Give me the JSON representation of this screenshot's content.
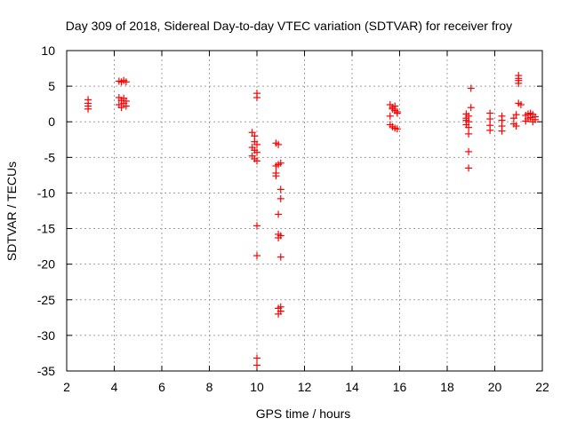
{
  "chart_data": {
    "type": "scatter",
    "title": "Day 309 of 2018, Sidereal Day-to-day VTEC variation (SDTVAR) for receiver froy",
    "xlabel": "GPS time / hours",
    "ylabel": "SDTVAR / TECUs",
    "xlim": [
      2,
      22
    ],
    "ylim": [
      -35,
      10
    ],
    "xticks": [
      2,
      4,
      6,
      8,
      10,
      12,
      14,
      16,
      18,
      20,
      22
    ],
    "yticks": [
      10,
      5,
      0,
      -5,
      -10,
      -15,
      -20,
      -25,
      -30,
      -35
    ],
    "grid": true,
    "marker": "+",
    "color": "#ff0000",
    "series": [
      {
        "name": "SDTVAR",
        "points": [
          [
            2.9,
            3.1
          ],
          [
            2.9,
            2.6
          ],
          [
            2.9,
            2.2
          ],
          [
            2.9,
            1.8
          ],
          [
            4.2,
            5.7
          ],
          [
            4.3,
            5.6
          ],
          [
            4.4,
            5.8
          ],
          [
            4.5,
            5.6
          ],
          [
            4.2,
            3.4
          ],
          [
            4.3,
            3.0
          ],
          [
            4.4,
            2.6
          ],
          [
            4.5,
            2.2
          ],
          [
            4.3,
            2.0
          ],
          [
            4.4,
            3.3
          ],
          [
            4.5,
            2.9
          ],
          [
            4.2,
            2.4
          ],
          [
            9.8,
            -1.5
          ],
          [
            9.9,
            -2.0
          ],
          [
            9.9,
            -2.8
          ],
          [
            10.0,
            -3.2
          ],
          [
            9.8,
            -3.6
          ],
          [
            9.9,
            -4.0
          ],
          [
            10.0,
            -4.3
          ],
          [
            9.8,
            -4.8
          ],
          [
            9.9,
            -5.2
          ],
          [
            10.0,
            -5.5
          ],
          [
            10.0,
            4.0
          ],
          [
            10.0,
            3.4
          ],
          [
            10.0,
            -14.6
          ],
          [
            10.0,
            -18.8
          ],
          [
            10.0,
            -33.2
          ],
          [
            10.0,
            -34.2
          ],
          [
            10.8,
            -3.0
          ],
          [
            10.9,
            -3.2
          ],
          [
            10.8,
            -6.2
          ],
          [
            10.9,
            -6.0
          ],
          [
            11.0,
            -5.8
          ],
          [
            10.8,
            -7.2
          ],
          [
            10.8,
            -7.6
          ],
          [
            11.0,
            -9.5
          ],
          [
            11.0,
            -10.8
          ],
          [
            10.9,
            -13.0
          ],
          [
            10.9,
            -15.8
          ],
          [
            10.9,
            -16.3
          ],
          [
            11.0,
            -16.0
          ],
          [
            11.0,
            -19.0
          ],
          [
            10.9,
            -26.2
          ],
          [
            11.0,
            -26.6
          ],
          [
            10.9,
            -27.0
          ],
          [
            11.0,
            -26.0
          ],
          [
            15.6,
            2.4
          ],
          [
            15.7,
            2.0
          ],
          [
            15.8,
            1.6
          ],
          [
            15.9,
            1.2
          ],
          [
            15.6,
            0.8
          ],
          [
            15.7,
            1.8
          ],
          [
            15.8,
            2.2
          ],
          [
            15.9,
            1.4
          ],
          [
            15.6,
            -0.4
          ],
          [
            15.7,
            -0.7
          ],
          [
            15.8,
            -0.9
          ],
          [
            15.9,
            -1.0
          ],
          [
            18.8,
            1.1
          ],
          [
            18.9,
            0.8
          ],
          [
            18.8,
            0.2
          ],
          [
            18.9,
            0.0
          ],
          [
            18.8,
            -0.4
          ],
          [
            18.9,
            -0.8
          ],
          [
            18.8,
            0.5
          ],
          [
            19.0,
            4.7
          ],
          [
            19.0,
            2.0
          ],
          [
            18.9,
            -1.7
          ],
          [
            18.9,
            -4.2
          ],
          [
            18.9,
            -6.5
          ],
          [
            19.8,
            1.2
          ],
          [
            19.8,
            0.4
          ],
          [
            19.8,
            -0.5
          ],
          [
            19.8,
            -1.2
          ],
          [
            20.3,
            0.8
          ],
          [
            20.3,
            0.2
          ],
          [
            20.3,
            -0.6
          ],
          [
            20.3,
            -1.3
          ],
          [
            20.8,
            0.5
          ],
          [
            20.9,
            1.0
          ],
          [
            20.8,
            -0.3
          ],
          [
            20.9,
            -0.6
          ],
          [
            21.0,
            6.5
          ],
          [
            21.0,
            6.1
          ],
          [
            21.0,
            5.8
          ],
          [
            21.0,
            5.4
          ],
          [
            21.0,
            2.6
          ],
          [
            21.1,
            2.4
          ],
          [
            21.3,
            0.9
          ],
          [
            21.4,
            1.1
          ],
          [
            21.5,
            0.6
          ],
          [
            21.6,
            1.0
          ],
          [
            21.7,
            0.3
          ],
          [
            21.3,
            0.1
          ],
          [
            21.4,
            0.4
          ],
          [
            21.5,
            1.2
          ],
          [
            21.6,
            0.0
          ],
          [
            21.7,
            0.7
          ]
        ]
      }
    ]
  }
}
